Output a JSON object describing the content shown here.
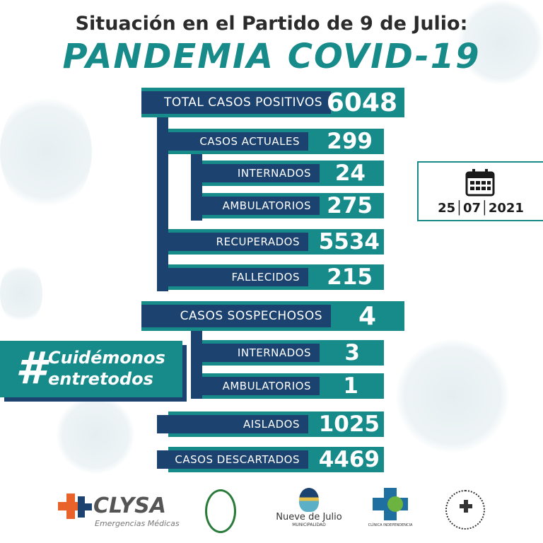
{
  "header": {
    "title": "Situación en el Partido de 9 de Julio:",
    "subtitle": "PANDEMIA COVID-19"
  },
  "rows": {
    "total": {
      "label": "TOTAL CASOS POSITIVOS",
      "value": "6048"
    },
    "actuales": {
      "label": "CASOS ACTUALES",
      "value": "299"
    },
    "internados": {
      "label": "INTERNADOS",
      "value": "24"
    },
    "ambulatorios": {
      "label": "AMBULATORIOS",
      "value": "275"
    },
    "recuperados": {
      "label": "RECUPERADOS",
      "value": "5534"
    },
    "fallecidos": {
      "label": "FALLECIDOS",
      "value": "215"
    },
    "sospechosos": {
      "label": "CASOS SOSPECHOSOS",
      "value": "4"
    },
    "sosp_internados": {
      "label": "INTERNADOS",
      "value": "3"
    },
    "sosp_ambulatorios": {
      "label": "AMBULATORIOS",
      "value": "1"
    },
    "aislados": {
      "label": "AISLADOS",
      "value": "1025"
    },
    "descartados": {
      "label": "CASOS DESCARTADOS",
      "value": "4469"
    }
  },
  "date": {
    "icon": "calendar-icon",
    "text": "25│07│2021"
  },
  "hashtag": {
    "symbol": "#",
    "line1": "Cuidémonos",
    "line2": "entretodos"
  },
  "logos": {
    "clysa": "CLYSA",
    "clysa_sub": "Emergencias Médicas",
    "nueve": "Nueve de Julio",
    "nueve_sub": "MUNICIPALIDAD",
    "clinica": "CLÍNICA INDEPENDENCIA"
  },
  "colors": {
    "teal": "#178a8a",
    "navy": "#1c426f"
  }
}
